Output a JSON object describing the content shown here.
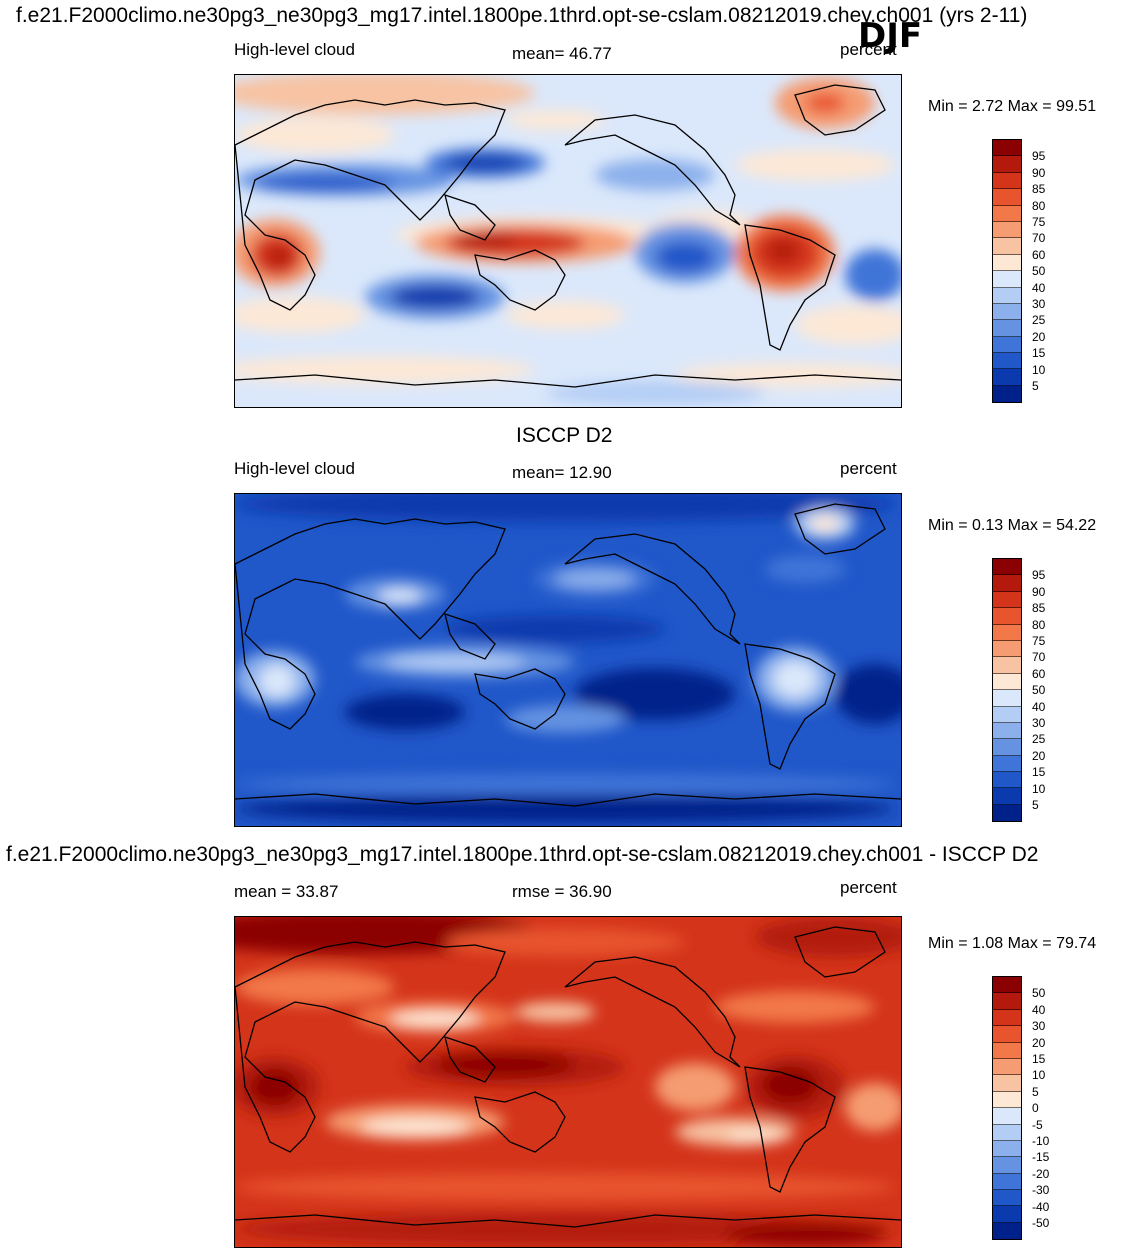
{
  "header": {
    "title": "f.e21.F2000climo.ne30pg3_ne30pg3_mg17.intel.1800pe.1thrd.opt-se-cslam.08212019.chey.ch001 (yrs 2-11)",
    "season": "DJF"
  },
  "panels": [
    {
      "id": "model",
      "left_label": "High-level cloud",
      "center_label": "mean=  46.77",
      "right_label": "percent",
      "min_max": "Min =   2.72 Max =  99.51",
      "colorbar": {
        "colors": [
          "#8b0000",
          "#b31a0d",
          "#d4341a",
          "#e8542e",
          "#f2784a",
          "#f59c72",
          "#f7c3a3",
          "#fde8d6",
          "#dbe8fb",
          "#b3cdf5",
          "#8cb0ec",
          "#6593e2",
          "#3f74d8",
          "#2057c9",
          "#0a3aad",
          "#00208a"
        ],
        "ticks": [
          "95",
          "90",
          "85",
          "80",
          "75",
          "70",
          "60",
          "50",
          "40",
          "30",
          "25",
          "20",
          "15",
          "10",
          "5"
        ]
      }
    },
    {
      "id": "obs",
      "top_label": "ISCCP D2",
      "left_label": "High-level cloud",
      "center_label": "mean=  12.90",
      "right_label": "percent",
      "min_max": "Min =   0.13 Max =  54.22",
      "colorbar": {
        "colors": [
          "#8b0000",
          "#b31a0d",
          "#d4341a",
          "#e8542e",
          "#f2784a",
          "#f59c72",
          "#f7c3a3",
          "#fde8d6",
          "#dbe8fb",
          "#b3cdf5",
          "#8cb0ec",
          "#6593e2",
          "#3f74d8",
          "#2057c9",
          "#0a3aad",
          "#00208a"
        ],
        "ticks": [
          "95",
          "90",
          "85",
          "80",
          "75",
          "70",
          "60",
          "50",
          "40",
          "30",
          "25",
          "20",
          "15",
          "10",
          "5"
        ]
      }
    },
    {
      "id": "diff",
      "top_label": "f.e21.F2000climo.ne30pg3_ne30pg3_mg17.intel.1800pe.1thrd.opt-se-cslam.08212019.chey.ch001 - ISCCP D2",
      "left_label": "mean =  33.87",
      "center_label": "rmse =  36.90",
      "right_label": "percent",
      "min_max": "Min =   1.08 Max =  79.74",
      "colorbar": {
        "colors": [
          "#8b0000",
          "#b31a0d",
          "#d4341a",
          "#e8542e",
          "#f2784a",
          "#f59c72",
          "#f7c3a3",
          "#fde8d6",
          "#dbe8fb",
          "#b3cdf5",
          "#8cb0ec",
          "#6593e2",
          "#3f74d8",
          "#2057c9",
          "#0a3aad",
          "#00208a"
        ],
        "ticks": [
          "50",
          "40",
          "30",
          "20",
          "15",
          "10",
          "5",
          "0",
          "-5",
          "-10",
          "-15",
          "-20",
          "-30",
          "-40",
          "-50"
        ]
      }
    }
  ]
}
